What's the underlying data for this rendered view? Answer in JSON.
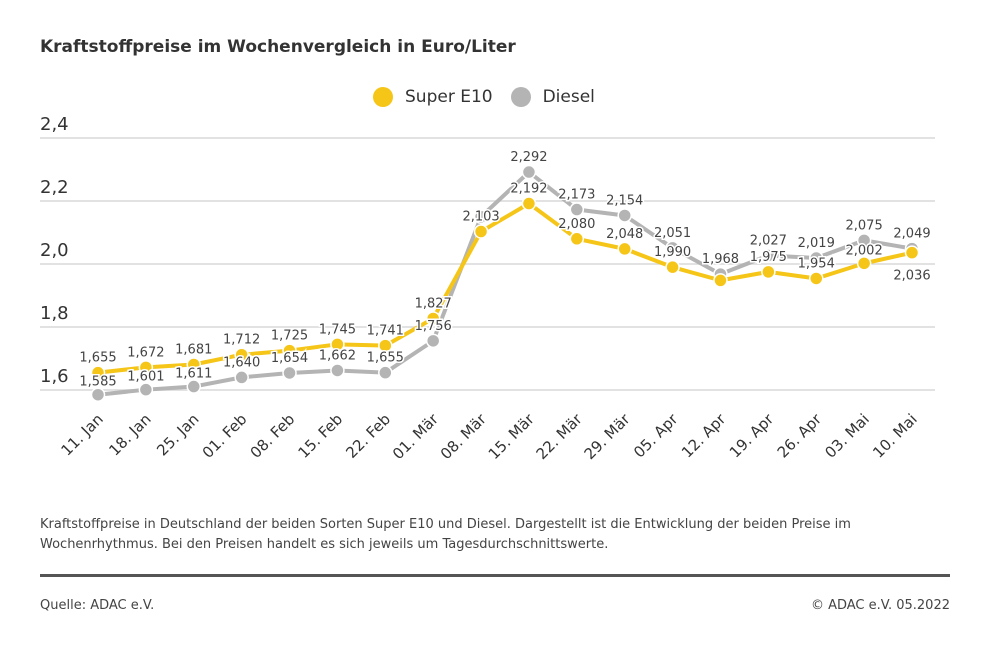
{
  "title": "Kraftstoffpreise im Wochenvergleich in Euro/Liter",
  "legend": [
    {
      "label": "Super E10",
      "color": "#F5C518"
    },
    {
      "label": "Diesel",
      "color": "#B4B4B4"
    }
  ],
  "note": "Kraftstoffpreise in Deutschland der beiden Sorten Super E10 und Diesel. Dargestellt ist die Entwicklung der beiden Preise im Wochenrhythmus. Bei den Preisen handelt es sich jeweils um Tagesdurchschnittswerte.",
  "source": "Quelle: ADAC e.V.",
  "copyright": "© ADAC e.V. 05.2022",
  "chart_data": {
    "type": "line",
    "title": "Kraftstoffpreise im Wochenvergleich in Euro/Liter",
    "xlabel": "",
    "ylabel": "",
    "ylim": [
      1.6,
      2.4
    ],
    "yticks": [
      1.6,
      1.8,
      2.0,
      2.2,
      2.4
    ],
    "ytick_labels": [
      "1,6",
      "1,8",
      "2,0",
      "2,2",
      "2,4"
    ],
    "grid": true,
    "legend_position": "top-center",
    "categories": [
      "11. Jan",
      "18. Jan",
      "25. Jan",
      "01. Feb",
      "08. Feb",
      "15. Feb",
      "22. Feb",
      "01. Mär",
      "08. Mär",
      "15. Mär",
      "22. Mär",
      "29. Mär",
      "05. Apr",
      "12. Apr",
      "19. Apr",
      "26. Apr",
      "03. Mai",
      "10. Mai"
    ],
    "series": [
      {
        "name": "Super E10",
        "color": "#F5C518",
        "values": [
          1.655,
          1.672,
          1.681,
          1.712,
          1.725,
          1.745,
          1.741,
          1.827,
          2.103,
          2.192,
          2.08,
          2.048,
          1.99,
          1.948,
          1.975,
          1.954,
          2.002,
          2.036
        ],
        "labels": [
          "1,655",
          "1,672",
          "1,681",
          "1,712",
          "1,725",
          "1,745",
          "1,741",
          "1,827",
          "2,103",
          "2,192",
          "2,080",
          "2,048",
          "1,990",
          "",
          "1,975",
          "1,954",
          "2,002",
          "2,036"
        ]
      },
      {
        "name": "Diesel",
        "color": "#B4B4B4",
        "values": [
          1.585,
          1.601,
          1.611,
          1.64,
          1.654,
          1.662,
          1.655,
          1.756,
          2.15,
          2.292,
          2.173,
          2.154,
          2.051,
          1.968,
          2.027,
          2.019,
          2.075,
          2.049
        ],
        "labels": [
          "1,585",
          "1,601",
          "1,611",
          "1,640",
          "1,654",
          "1,662",
          "1,655",
          "1,756",
          "",
          "2,292",
          "2,173",
          "2,154",
          "2,051",
          "1,968",
          "2,027",
          "2,019",
          "2,075",
          "2,049"
        ]
      }
    ]
  }
}
